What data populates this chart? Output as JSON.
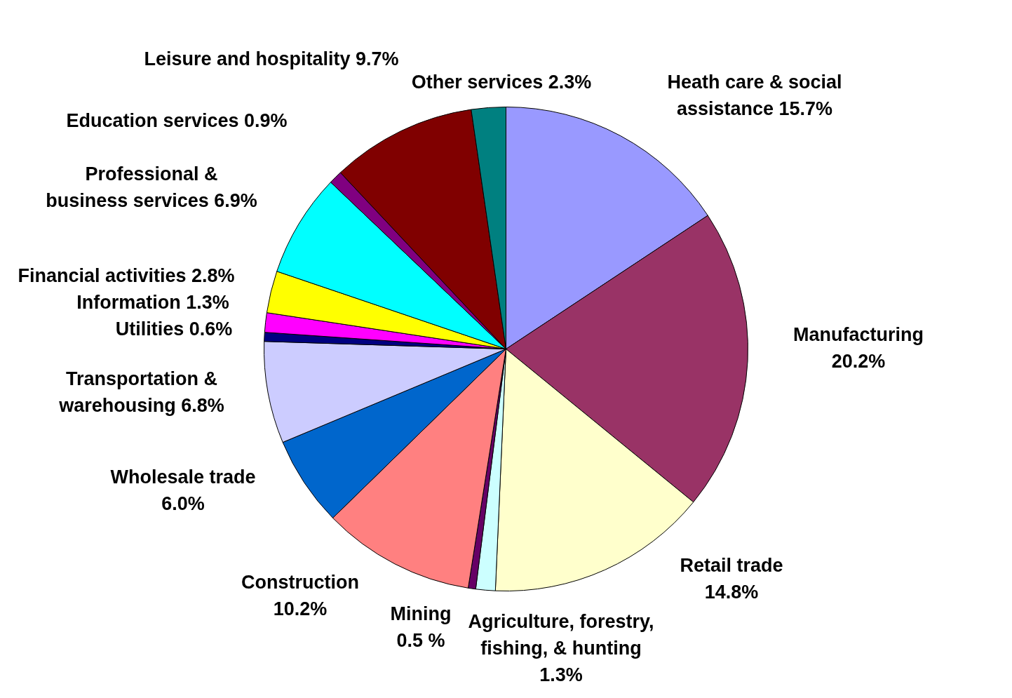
{
  "chart_data": {
    "type": "pie",
    "categories": [
      "Heath care & social assistance",
      "Manufacturing",
      "Retail trade",
      "Agriculture, forestry, fishing, & hunting",
      "Mining",
      "Construction",
      "Wholesale trade",
      "Transportation & warehousing",
      "Utilities",
      "Information",
      "Financial activities",
      "Professional & business services",
      "Education services",
      "Leisure and hospitality",
      "Other services"
    ],
    "values": [
      15.7,
      20.2,
      14.8,
      1.3,
      0.5,
      10.2,
      6.0,
      6.8,
      0.6,
      1.3,
      2.8,
      6.9,
      0.9,
      9.7,
      2.3
    ],
    "value_labels": [
      "15.7%",
      "20.2%",
      "14.8%",
      "1.3%",
      "0.5 %",
      "10.2%",
      "6.0%",
      "6.8%",
      "0.6%",
      "1.3%",
      "2.8%",
      "6.9%",
      "0.9%",
      "9.7%",
      "2.3%"
    ],
    "colors": [
      "#9999ff",
      "#993366",
      "#ffffcc",
      "#ccffff",
      "#660066",
      "#ff8080",
      "#0066cc",
      "#ccccff",
      "#000080",
      "#ff00ff",
      "#ffff00",
      "#00ffff",
      "#800080",
      "#800000",
      "#008080"
    ]
  }
}
